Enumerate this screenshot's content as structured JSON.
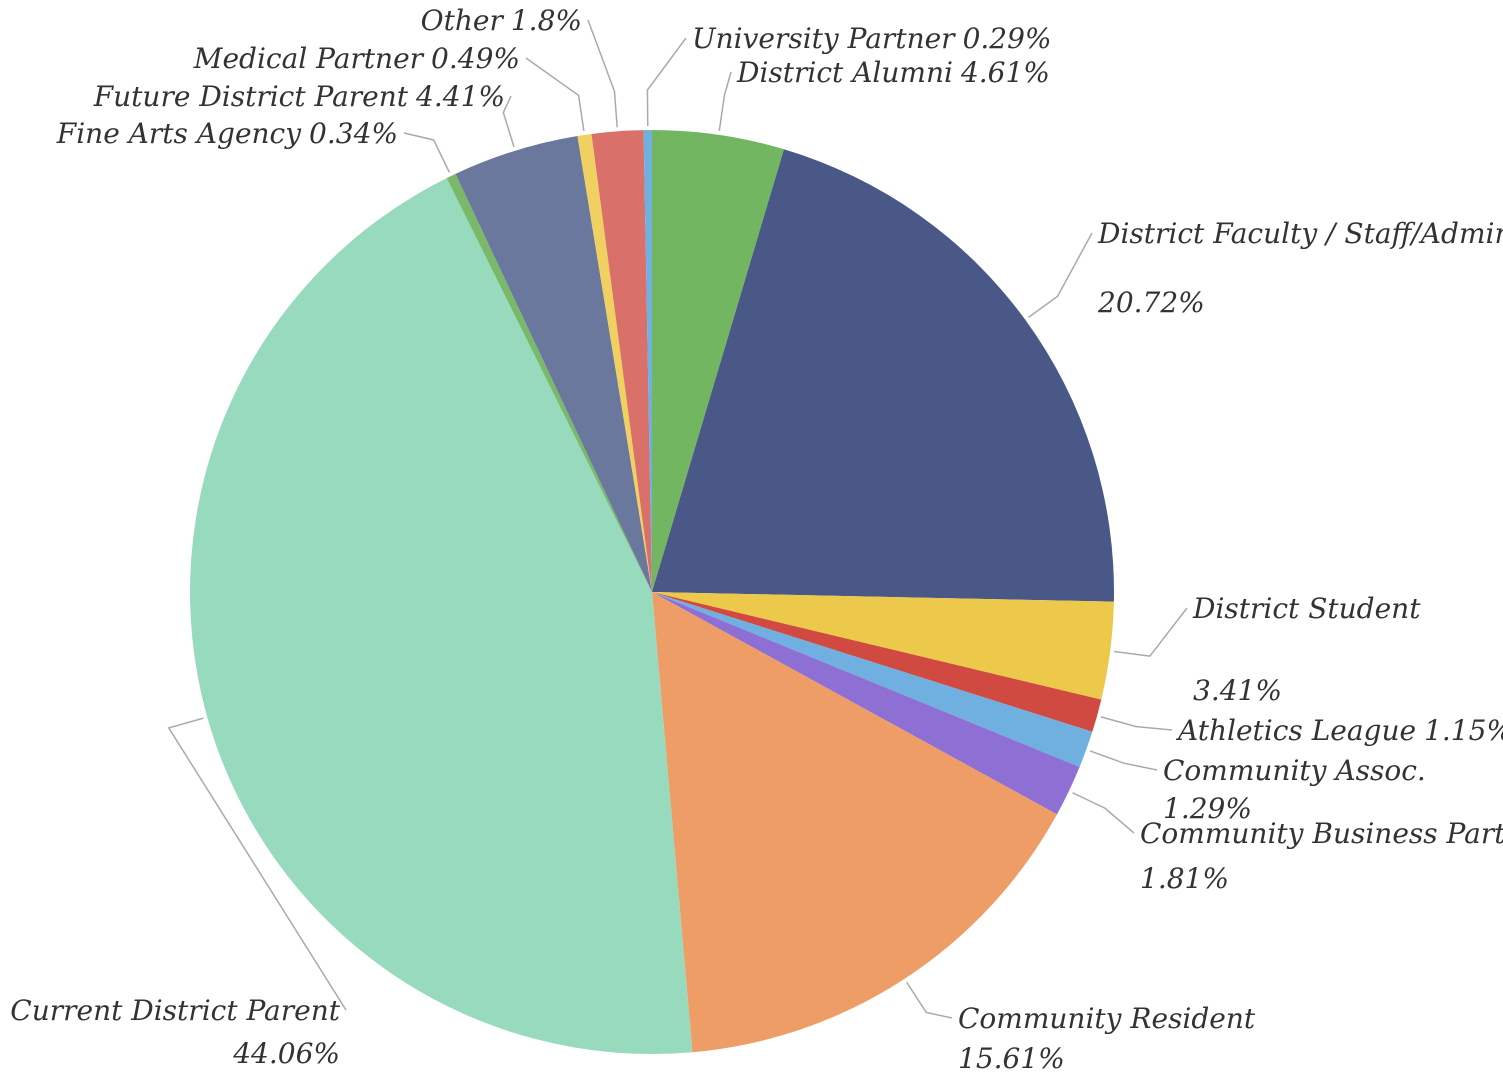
{
  "chart_data": {
    "type": "pie",
    "categories": [
      "District Alumni",
      "District Faculty / Staff/Administrator",
      "District Student",
      "Athletics League",
      "Community Assoc.",
      "Community Business Partner",
      "Community Resident",
      "Current District Parent",
      "Fine Arts Agency",
      "Future District Parent",
      "Medical Partner",
      "Other",
      "University Partner"
    ],
    "values": [
      4.61,
      20.72,
      3.41,
      1.15,
      1.29,
      1.81,
      15.61,
      44.06,
      0.34,
      4.41,
      0.49,
      1.8,
      0.29
    ],
    "value_labels": [
      "4.61%",
      "20.72%",
      "3.41%",
      "1.15%",
      "1.29%",
      "1.81%",
      "15.61%",
      "44.06%",
      "0.34%",
      "4.41%",
      "0.49%",
      "1.8%",
      "0.29%"
    ],
    "colors": [
      "#72b662",
      "#4a5888",
      "#ecc94b",
      "#d04a42",
      "#6fb0e0",
      "#8e6fd4",
      "#ef9d66",
      "#98dabd",
      "#7ab86a",
      "#6b789e",
      "#f0d060",
      "#d9706a",
      "#6fb0e0"
    ]
  }
}
